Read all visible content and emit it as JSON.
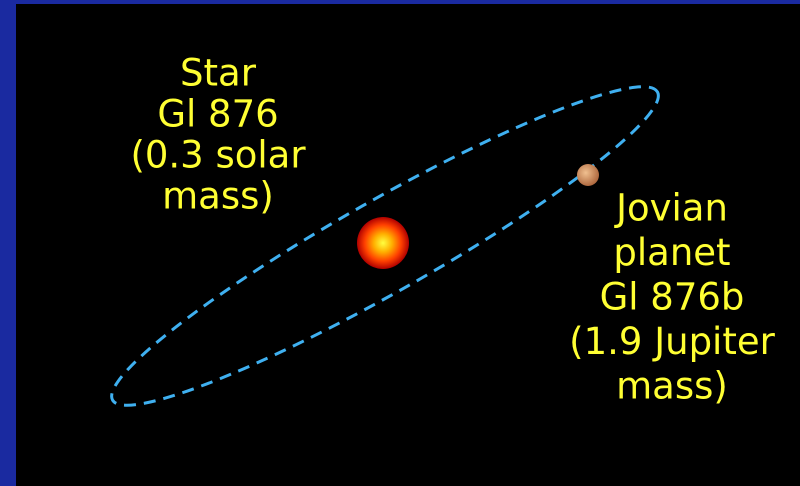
{
  "star": {
    "lines": [
      "Star",
      "Gl 876",
      "(0.3 solar",
      "mass)"
    ]
  },
  "planet": {
    "lines": [
      "Jovian",
      "planet",
      "Gl 876b",
      "(1.9 Jupiter",
      "mass)"
    ]
  }
}
